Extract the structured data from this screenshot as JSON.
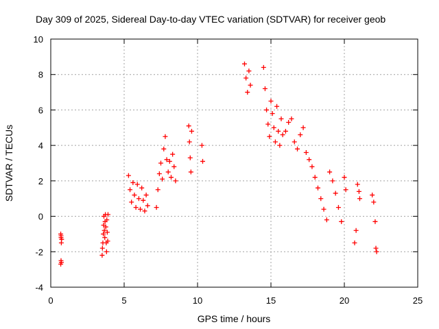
{
  "chart_data": {
    "type": "scatter",
    "title": "Day 309 of 2025, Sidereal Day-to-day VTEC variation (SDTVAR) for receiver geob",
    "xlabel": "GPS time / hours",
    "ylabel": "SDTVAR / TECUs",
    "xlim": [
      0,
      25
    ],
    "ylim": [
      -4,
      10
    ],
    "xticks": [
      0,
      5,
      10,
      15,
      20,
      25
    ],
    "yticks": [
      -4,
      -2,
      0,
      2,
      4,
      6,
      8,
      10
    ],
    "grid": true,
    "marker": "+",
    "marker_color": "#ff0000",
    "series": [
      {
        "name": "SDTVAR",
        "x": [
          0.68,
          0.7,
          0.72,
          0.7,
          0.68,
          0.72,
          0.7,
          0.74,
          3.5,
          3.52,
          3.55,
          3.58,
          3.6,
          3.62,
          3.65,
          3.68,
          3.7,
          3.72,
          3.75,
          3.78,
          3.8,
          3.82,
          3.85,
          3.88,
          3.9,
          5.3,
          5.4,
          5.5,
          5.6,
          5.7,
          5.8,
          5.9,
          6.0,
          6.1,
          6.2,
          6.3,
          6.4,
          6.5,
          6.6,
          7.2,
          7.3,
          7.4,
          7.5,
          7.6,
          7.7,
          7.8,
          7.9,
          8.0,
          8.1,
          8.2,
          8.3,
          8.4,
          8.5,
          9.4,
          9.45,
          9.5,
          9.55,
          9.6,
          10.3,
          10.35,
          13.2,
          13.3,
          13.4,
          13.5,
          13.6,
          14.5,
          14.6,
          14.7,
          14.8,
          14.9,
          15.0,
          15.1,
          15.2,
          15.3,
          15.4,
          15.5,
          15.6,
          15.7,
          15.8,
          16.0,
          16.2,
          16.4,
          16.6,
          16.8,
          17.0,
          17.2,
          17.4,
          17.6,
          17.8,
          18.0,
          18.2,
          18.4,
          18.6,
          18.8,
          19.0,
          19.2,
          19.4,
          19.6,
          19.8,
          20.0,
          20.1,
          20.7,
          20.8,
          20.9,
          21.0,
          21.05,
          21.9,
          22.0,
          22.1,
          22.15,
          22.2
        ],
        "y": [
          -1.0,
          -1.2,
          -1.5,
          -2.5,
          -2.7,
          -2.6,
          -1.1,
          -1.3,
          -2.2,
          -1.8,
          -1.5,
          -1.0,
          -0.5,
          0.0,
          -0.8,
          -1.2,
          -0.3,
          0.1,
          -0.6,
          -1.5,
          -2.0,
          -0.2,
          -0.9,
          -1.4,
          0.1,
          2.3,
          1.5,
          0.8,
          1.9,
          1.2,
          0.5,
          1.8,
          1.0,
          0.4,
          1.6,
          0.9,
          0.3,
          1.2,
          0.6,
          0.5,
          1.5,
          2.4,
          3.0,
          2.1,
          3.8,
          4.5,
          3.2,
          2.5,
          3.1,
          2.2,
          3.5,
          2.8,
          2.0,
          5.1,
          4.2,
          3.3,
          2.5,
          4.8,
          4.0,
          3.1,
          8.6,
          7.8,
          7.0,
          8.2,
          7.4,
          8.4,
          7.2,
          6.0,
          5.2,
          4.5,
          6.5,
          5.8,
          5.0,
          4.2,
          6.2,
          4.8,
          4.0,
          5.5,
          4.6,
          4.8,
          5.3,
          5.5,
          4.2,
          3.8,
          4.6,
          5.0,
          3.6,
          3.2,
          2.8,
          2.2,
          1.6,
          1.0,
          0.4,
          -0.2,
          2.5,
          2.0,
          1.3,
          0.5,
          -0.3,
          2.2,
          1.5,
          -1.5,
          -0.8,
          1.8,
          1.4,
          1.0,
          1.2,
          0.8,
          -0.3,
          -1.8,
          -2.0
        ]
      }
    ]
  }
}
